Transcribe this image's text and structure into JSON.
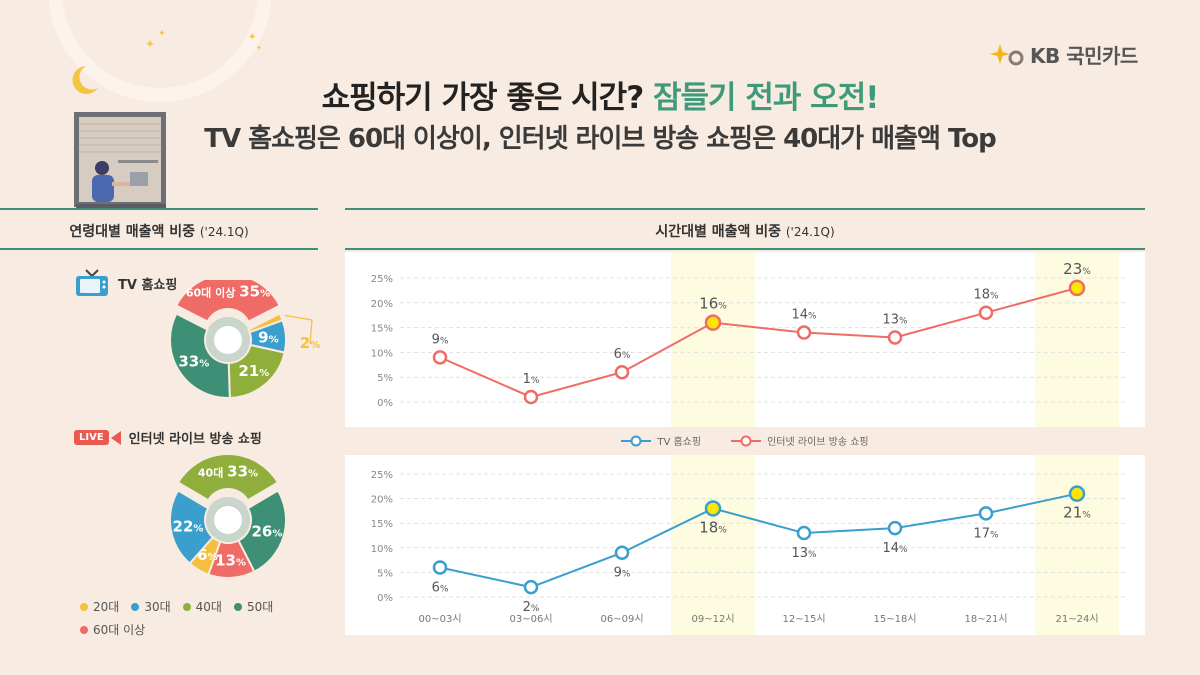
{
  "brand": {
    "name": "KB 국민카드"
  },
  "title": {
    "part1": "쇼핑하기 가장 좋은 시간? ",
    "part2": "잠들기 전과 오전!"
  },
  "subtitle": "TV 홈쇼핑은 60대 이상이, 인터넷 라이브 방송 쇼핑은 40대가 매출액 Top",
  "left_section": {
    "title": "연령대별 매출액 비중",
    "period": "('24.1Q)"
  },
  "right_section": {
    "title": "시간대별 매출액 비중",
    "period": "('24.1Q)"
  },
  "colors": {
    "20s": "#f4c03e",
    "30s": "#3a9fcc",
    "40s": "#8fae3c",
    "50s": "#3d8f76",
    "60s": "#ef6b66",
    "tv_line": "#3a9fcc",
    "live_line": "#ef6b66",
    "highlight": "#fdfbe0"
  },
  "age_legend": [
    "20대",
    "30대",
    "40대",
    "50대",
    "60대 이상"
  ],
  "icons": {
    "brand": "kb-star-logo",
    "tv": "tv-icon",
    "live": "live-camera-icon",
    "deco": "moon-window-icon"
  },
  "chart_data": [
    {
      "type": "pie",
      "name": "TV 홈쇼핑",
      "categories": [
        "60대 이상",
        "20대",
        "30대",
        "40대",
        "50대"
      ],
      "values": [
        35,
        2,
        9,
        21,
        33
      ],
      "labels": [
        "35",
        "2",
        "9",
        "21",
        "33"
      ],
      "unit": "%",
      "exploded": "60대 이상"
    },
    {
      "type": "pie",
      "name": "인터넷 라이브 방송 쇼핑",
      "live_badge": "LIVE",
      "categories": [
        "40대",
        "50대",
        "60대 이상",
        "20대",
        "30대"
      ],
      "values": [
        33,
        26,
        13,
        6,
        22
      ],
      "labels": [
        "33",
        "26",
        "13",
        "6",
        "22"
      ],
      "unit": "%",
      "exploded": "40대"
    },
    {
      "type": "line",
      "categories": [
        "00~03시",
        "03~06시",
        "06~09시",
        "09~12시",
        "12~15시",
        "15~18시",
        "18~21시",
        "21~24시"
      ],
      "series": [
        {
          "name": "TV 홈쇼핑",
          "values": [
            6,
            2,
            9,
            18,
            13,
            14,
            17,
            21
          ],
          "labels": [
            "6",
            "2",
            "9",
            "18",
            "13",
            "14",
            "17",
            "21"
          ]
        },
        {
          "name": "인터넷 라이브 방송 쇼핑",
          "values": [
            9,
            1,
            6,
            16,
            14,
            13,
            18,
            23
          ],
          "labels": [
            "9",
            "1",
            "6",
            "16",
            "14",
            "13",
            "18",
            "23"
          ]
        }
      ],
      "unit": "%",
      "ylim": [
        0,
        25
      ],
      "yticks": [
        "0%",
        "5%",
        "10%",
        "15%",
        "20%",
        "25%"
      ],
      "highlighted": [
        "09~12시",
        "21~24시"
      ],
      "legend_position": "center"
    }
  ]
}
